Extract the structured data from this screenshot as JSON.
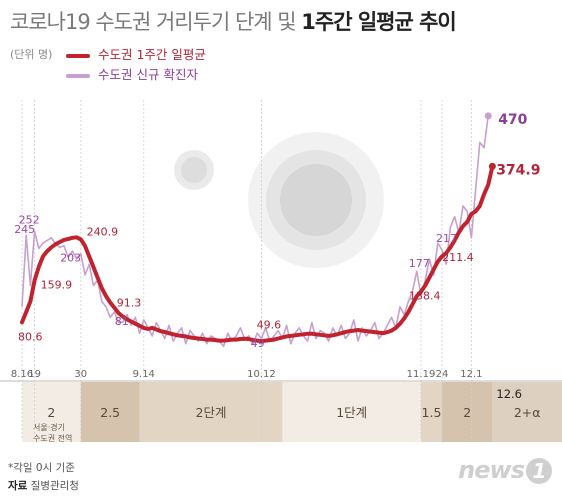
{
  "title": {
    "light": "코로나19 수도권 거리두기 단계 및",
    "bold": "1주간 일평균 추이"
  },
  "unit": "(단위 명)",
  "legend": [
    {
      "label": "수도권 1주간 일평균",
      "color": "#c0232e"
    },
    {
      "label": "수도권 신규 확진자",
      "color": "#c7a0cf"
    }
  ],
  "chart_data": {
    "type": "line",
    "x_tick_labels": [
      {
        "day": 0,
        "label": "8.16"
      },
      {
        "day": 3,
        "label": "19"
      },
      {
        "day": 14,
        "label": "30"
      },
      {
        "day": 29,
        "label": "9.14"
      },
      {
        "day": 57,
        "label": "10.12"
      },
      {
        "day": 95,
        "label": "11.19"
      },
      {
        "day": 100,
        "label": "24"
      },
      {
        "day": 107,
        "label": "12.1"
      }
    ],
    "ylim": [
      0,
      500
    ],
    "series": [
      {
        "name": "수도권 1주간 일평균",
        "color": "#c0232e",
        "values": [
          80.6,
          100,
          120,
          159.9,
          185,
          205,
          215,
          222,
          228,
          232,
          236,
          238,
          240,
          240.9,
          237,
          225,
          205,
          185,
          165,
          145,
          130,
          118,
          108,
          98,
          91.3,
          86,
          82,
          78,
          74,
          70,
          68,
          70,
          67,
          64,
          62,
          60,
          58,
          56,
          55,
          54,
          52,
          51,
          50,
          49,
          48,
          48,
          47,
          46,
          46,
          47,
          48,
          48,
          49,
          49.6,
          49,
          47,
          46,
          45,
          46,
          47,
          48,
          50,
          52,
          54,
          55,
          56,
          57,
          58,
          59,
          59,
          58,
          57,
          56,
          55,
          56,
          58,
          60,
          62,
          64,
          65,
          66,
          65,
          64,
          63,
          62,
          61,
          60,
          62,
          65,
          70,
          78,
          88,
          100,
          115,
          130,
          138.4,
          150,
          165,
          180,
          195,
          205,
          211.4,
          222,
          235,
          250,
          262,
          270,
          285,
          290,
          300,
          322,
          340,
          374.9
        ],
        "labels": [
          {
            "day": 0,
            "value": 80.6,
            "text": "80.6"
          },
          {
            "day": 3,
            "value": 159.9,
            "text": "159.9"
          },
          {
            "day": 13,
            "value": 240.9,
            "text": "240.9"
          },
          {
            "day": 24,
            "value": 91.3,
            "text": "91.3"
          },
          {
            "day": 53,
            "value": 49.6,
            "text": "49.6"
          },
          {
            "day": 95,
            "value": 138.4,
            "text": "138.4"
          },
          {
            "day": 101,
            "value": 211.4,
            "text": "211.4"
          },
          {
            "day": 111,
            "value": 374.9,
            "text": "374.9"
          }
        ]
      },
      {
        "name": "수도권 신규 확진자",
        "color": "#c7a0cf",
        "values": [
          110,
          245,
          150,
          252,
          220,
          230,
          235,
          240,
          228,
          222,
          225,
          203,
          215,
          200,
          210,
          170,
          190,
          150,
          160,
          120,
          110,
          90,
          100,
          80,
          81,
          95,
          75,
          90,
          60,
          85,
          70,
          55,
          80,
          65,
          50,
          75,
          45,
          60,
          70,
          40,
          65,
          55,
          45,
          60,
          40,
          55,
          50,
          45,
          35,
          60,
          45,
          55,
          70,
          49,
          55,
          40,
          60,
          50,
          70,
          45,
          55,
          65,
          50,
          75,
          40,
          60,
          70,
          55,
          45,
          80,
          50,
          65,
          60,
          45,
          70,
          55,
          75,
          50,
          60,
          85,
          45,
          70,
          55,
          65,
          80,
          50,
          60,
          75,
          90,
          70,
          110,
          95,
          120,
          140,
          177,
          130,
          160,
          200,
          170,
          230,
          217,
          190,
          260,
          280,
          250,
          300,
          290,
          240,
          330,
          420,
          410,
          470
        ],
        "labels": [
          {
            "day": 1,
            "value": 245,
            "text": "245"
          },
          {
            "day": 3,
            "value": 252,
            "text": "252"
          },
          {
            "day": 11,
            "value": 203,
            "text": "203"
          },
          {
            "day": 24,
            "value": 81,
            "text": "81"
          },
          {
            "day": 53,
            "value": 49,
            "text": "49"
          },
          {
            "day": 94,
            "value": 177,
            "text": "177"
          },
          {
            "day": 100,
            "value": 217,
            "text": "217"
          },
          {
            "day": 111,
            "value": 470,
            "text": "470"
          }
        ]
      }
    ]
  },
  "stages": [
    {
      "label": "2",
      "fill": "#f3ece4",
      "start": 0,
      "end": 14
    },
    {
      "label": "2.5",
      "fill": "#d5c3ae",
      "start": 14,
      "end": 28
    },
    {
      "label": "2단계",
      "fill": "#e3d5c4",
      "start": 28,
      "end": 62
    },
    {
      "label": "1단계",
      "fill": "#f3ece4",
      "start": 62,
      "end": 95
    },
    {
      "label": "1.5",
      "fill": "#e3d5c4",
      "start": 95,
      "end": 100
    },
    {
      "label": "2",
      "fill": "#d5c3ae",
      "start": 100,
      "end": 112
    },
    {
      "label": "2+α",
      "fill": "#ddd0c0",
      "start": 112,
      "end": 133
    }
  ],
  "stage_notes": {
    "seoul": "서울·경기",
    "metro": "수도권 전역",
    "date_12_6": "12.6"
  },
  "footnote": {
    "note": "*각일 0시 기준",
    "source_label": "자료",
    "source": "질병관리청"
  },
  "logo": {
    "text": "news",
    "mark": "1"
  }
}
